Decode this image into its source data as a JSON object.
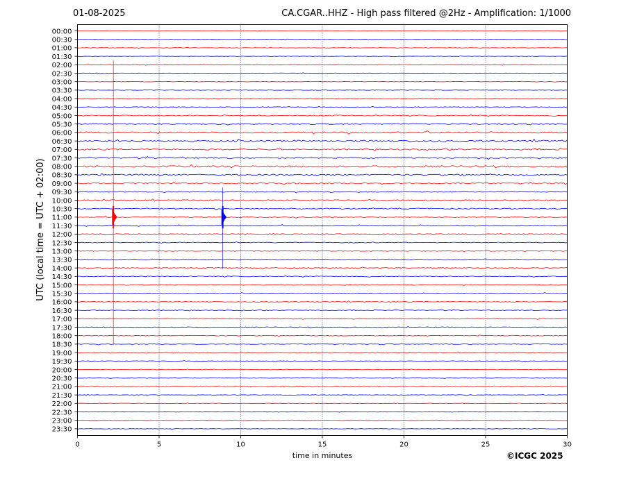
{
  "header": {
    "date": "01-08-2025",
    "title": "CA.CGAR..HHZ - High pass filtered @2Hz - Amplification: 1/1000"
  },
  "footer": {
    "copyright": "©ICGC 2025"
  },
  "colors": {
    "trace_a": "#ff0000",
    "trace_b": "#0000ff",
    "grid": "#1a1a8c",
    "axis": "#000000"
  },
  "chart_data": {
    "type": "line",
    "xlabel": "time in minutes",
    "ylabel": "UTC (local time = UTC + 02:00)",
    "xlim": [
      0,
      30
    ],
    "x_ticks": [
      0,
      5,
      10,
      15,
      20,
      25,
      30
    ],
    "grid": "vertical dotted at x ticks",
    "rows": [
      "00:00",
      "00:30",
      "01:00",
      "01:30",
      "02:00",
      "02:30",
      "03:00",
      "03:30",
      "04:00",
      "04:30",
      "05:00",
      "05:30",
      "06:00",
      "06:30",
      "07:00",
      "07:30",
      "08:00",
      "08:30",
      "09:00",
      "09:30",
      "10:00",
      "10:30",
      "11:00",
      "11:30",
      "12:00",
      "12:30",
      "13:00",
      "13:30",
      "14:00",
      "14:30",
      "15:00",
      "15:30",
      "16:00",
      "16:30",
      "17:00",
      "17:30",
      "18:00",
      "18:30",
      "19:00",
      "19:30",
      "20:00",
      "20:30",
      "21:00",
      "21:30",
      "22:00",
      "22:30",
      "23:00",
      "23:30"
    ],
    "row_colors": "alternating red / blue starting with red",
    "noise_levels": [
      0.5,
      0.5,
      0.5,
      0.5,
      0.6,
      0.6,
      0.6,
      0.6,
      0.7,
      0.8,
      1.2,
      1.5,
      2.0,
      2.2,
      1.8,
      1.8,
      1.8,
      1.8,
      1.6,
      1.6,
      1.5,
      1.3,
      1.2,
      1.1,
      1.0,
      1.0,
      1.0,
      1.0,
      1.0,
      1.0,
      1.0,
      0.9,
      0.9,
      0.9,
      0.9,
      0.9,
      0.9,
      0.9,
      0.9,
      0.8,
      0.7,
      0.6,
      0.6,
      0.6,
      0.6,
      0.6,
      0.5,
      0.5
    ],
    "events": [
      {
        "row": "11:00",
        "minute": 2.2,
        "spike_from": "02:00",
        "spike_to": "18:30",
        "color": "red"
      },
      {
        "row": "11:00",
        "minute": 8.9,
        "spike_from": "09:30",
        "spike_to": "14:00",
        "color": "blue"
      }
    ]
  }
}
